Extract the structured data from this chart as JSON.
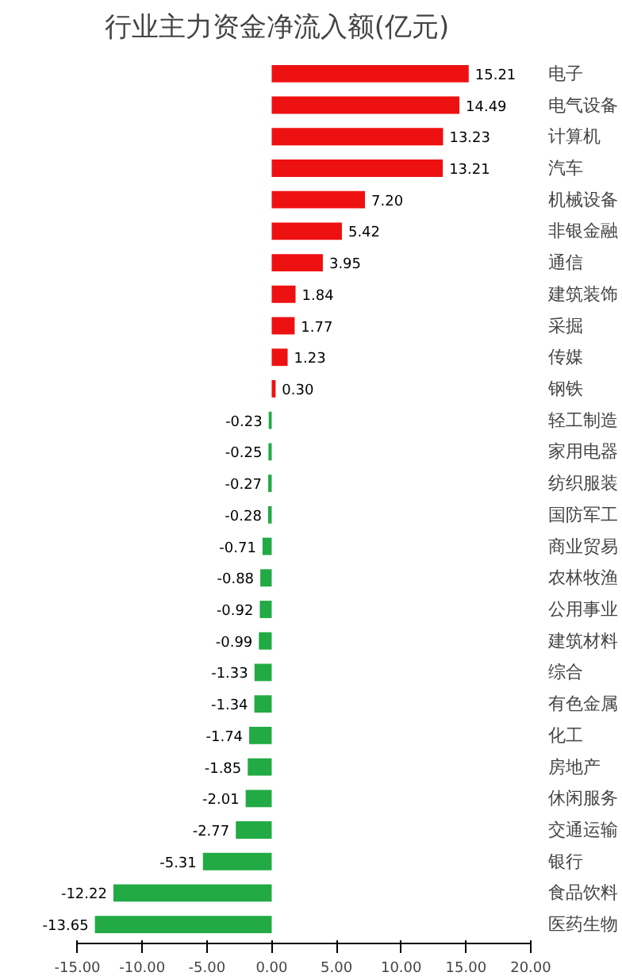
{
  "chart_data": {
    "type": "bar",
    "orientation": "horizontal",
    "title": "行业主力资金净流入额(亿元)",
    "categories": [
      "电子",
      "电气设备",
      "计算机",
      "汽车",
      "机械设备",
      "非银金融",
      "通信",
      "建筑装饰",
      "采掘",
      "传媒",
      "钢铁",
      "轻工制造",
      "家用电器",
      "纺织服装",
      "国防军工",
      "商业贸易",
      "农林牧渔",
      "公用事业",
      "建筑材料",
      "综合",
      "有色金属",
      "化工",
      "房地产",
      "休闲服务",
      "交通运输",
      "银行",
      "食品饮料",
      "医药生物"
    ],
    "values": [
      15.21,
      14.49,
      13.23,
      13.21,
      7.2,
      5.42,
      3.95,
      1.84,
      1.77,
      1.23,
      0.3,
      -0.23,
      -0.25,
      -0.27,
      -0.28,
      -0.71,
      -0.88,
      -0.92,
      -0.99,
      -1.33,
      -1.34,
      -1.74,
      -1.85,
      -2.01,
      -2.77,
      -5.31,
      -12.22,
      -13.65
    ],
    "colors": [
      "#ee1111",
      "#ee1111",
      "#ee1111",
      "#ee1111",
      "#ee1111",
      "#ee1111",
      "#ee1111",
      "#ee1111",
      "#ee1111",
      "#ee1111",
      "#ee1111",
      "#22aa44",
      "#22aa44",
      "#22aa44",
      "#22aa44",
      "#22aa44",
      "#22aa44",
      "#22aa44",
      "#22aa44",
      "#22aa44",
      "#22aa44",
      "#22aa44",
      "#22aa44",
      "#22aa44",
      "#22aa44",
      "#22aa44",
      "#22aa44",
      "#22aa44"
    ],
    "xlim": [
      -15,
      20
    ],
    "xticks": [
      {
        "value": -15,
        "label": "-15.00"
      },
      {
        "value": -10,
        "label": "-10.00"
      },
      {
        "value": -5,
        "label": "-5.00"
      },
      {
        "value": 0,
        "label": "0.00"
      },
      {
        "value": 5,
        "label": "5.00"
      },
      {
        "value": 10,
        "label": "10.00"
      },
      {
        "value": 15,
        "label": "15.00"
      },
      {
        "value": 20,
        "label": "20.00"
      }
    ],
    "value_labels": [
      "15.21",
      "14.49",
      "13.23",
      "13.21",
      "7.20",
      "5.42",
      "3.95",
      "1.84",
      "1.77",
      "1.23",
      "0.30",
      "-0.23",
      "-0.25",
      "-0.27",
      "-0.28",
      "-0.71",
      "-0.88",
      "-0.92",
      "-0.99",
      "-1.33",
      "-1.34",
      "-1.74",
      "-1.85",
      "-2.01",
      "-2.77",
      "-5.31",
      "-12.22",
      "-13.65"
    ],
    "grid": false
  }
}
